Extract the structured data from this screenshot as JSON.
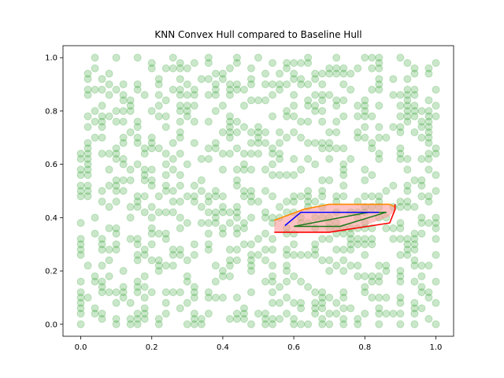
{
  "chart_data": {
    "type": "scatter",
    "title": "KNN Convex Hull compared to Baseline Hull",
    "xlabel": "",
    "ylabel": "",
    "xlim": [
      -0.05,
      1.05
    ],
    "ylim": [
      -0.045,
      1.045
    ],
    "x_ticks": [
      0.0,
      0.2,
      0.4,
      0.6,
      0.8,
      1.0
    ],
    "x_tick_labels": [
      "0.0",
      "0.2",
      "0.4",
      "0.6",
      "0.8",
      "1.0"
    ],
    "y_ticks": [
      0.0,
      0.2,
      0.4,
      0.6,
      0.8,
      1.0
    ],
    "y_tick_labels": [
      "0.0",
      "0.2",
      "0.4",
      "0.6",
      "0.8",
      "1.0"
    ],
    "grid": false,
    "legend": "none",
    "colors": {
      "points": "#2ca02c",
      "hull_fill": "#ff9999",
      "hull_edge_red": "#ff0000",
      "hull_edge_orange": "#ff8c00",
      "path_blue": "#0000ff",
      "path_green": "#1a7a1a"
    },
    "point_alpha": 0.25,
    "scatter": {
      "count": 1000,
      "x_range": [
        0.0,
        1.0
      ],
      "y_range": [
        0.0,
        1.0
      ],
      "grid_step": 0.02
    },
    "hull_polygon": {
      "x": [
        0.545,
        0.63,
        0.7,
        0.87,
        0.885,
        0.885,
        0.87,
        0.8,
        0.7,
        0.545
      ],
      "y": [
        0.39,
        0.435,
        0.452,
        0.452,
        0.445,
        0.428,
        0.405,
        0.37,
        0.345,
        0.345
      ]
    },
    "red_path": {
      "x": [
        0.545,
        0.63,
        0.7,
        0.87,
        0.885,
        0.885
      ],
      "y": [
        0.345,
        0.345,
        0.345,
        0.38,
        0.43,
        0.45
      ]
    },
    "orange_path": {
      "x": [
        0.545,
        0.63,
        0.7,
        0.8,
        0.87,
        0.885
      ],
      "y": [
        0.39,
        0.432,
        0.45,
        0.45,
        0.45,
        0.44
      ]
    },
    "blue_path": {
      "x": [
        0.575,
        0.62,
        0.7,
        0.84
      ],
      "y": [
        0.37,
        0.42,
        0.42,
        0.42
      ]
    },
    "green_path": {
      "x": [
        0.6,
        0.73,
        0.86,
        0.81,
        0.6
      ],
      "y": [
        0.367,
        0.367,
        0.42,
        0.42,
        0.367
      ]
    }
  }
}
